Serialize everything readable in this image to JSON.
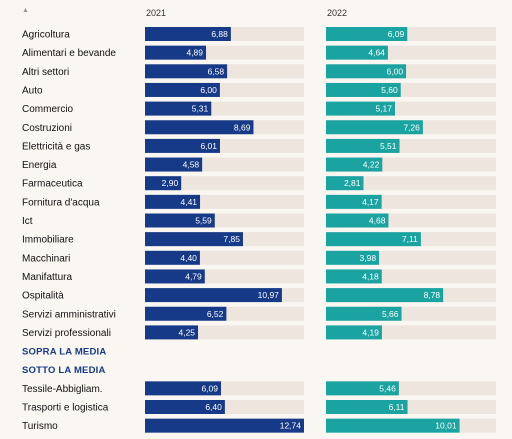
{
  "header": {
    "sort_icon": "▲",
    "col_2021": "2021",
    "col_2022": "2022"
  },
  "colors": {
    "bar_2021": "#163a87",
    "bar_2022": "#1aa3a0",
    "track": "#ede5de",
    "section": "#163a87"
  },
  "chart_data": {
    "type": "bar",
    "orientation": "horizontal",
    "series_names": [
      "2021",
      "2022"
    ],
    "xlim": [
      0,
      12.74
    ],
    "rows": [
      {
        "label": "Agricoltura",
        "v2021": "6,88",
        "v2022": "6,09"
      },
      {
        "label": "Alimentari e bevande",
        "v2021": "4,89",
        "v2022": "4,64"
      },
      {
        "label": "Altri settori",
        "v2021": "6,58",
        "v2022": "6,00"
      },
      {
        "label": "Auto",
        "v2021": "6,00",
        "v2022": "5,60"
      },
      {
        "label": "Commercio",
        "v2021": "5,31",
        "v2022": "5,17"
      },
      {
        "label": "Costruzioni",
        "v2021": "8,69",
        "v2022": "7,26"
      },
      {
        "label": "Elettricità e gas",
        "v2021": "6,01",
        "v2022": "5,51"
      },
      {
        "label": "Energia",
        "v2021": "4,58",
        "v2022": "4,22"
      },
      {
        "label": "Farmaceutica",
        "v2021": "2,90",
        "v2022": "2,81"
      },
      {
        "label": "Fornitura d'acqua",
        "v2021": "4,41",
        "v2022": "4,17"
      },
      {
        "label": "Ict",
        "v2021": "5,59",
        "v2022": "4,68"
      },
      {
        "label": "Immobiliare",
        "v2021": "7,85",
        "v2022": "7,11"
      },
      {
        "label": "Macchinari",
        "v2021": "4,40",
        "v2022": "3,98"
      },
      {
        "label": "Manifattura",
        "v2021": "4,79",
        "v2022": "4,18"
      },
      {
        "label": "Ospitalità",
        "v2021": "10,97",
        "v2022": "8,78"
      },
      {
        "label": "Servizi amministrativi",
        "v2021": "6,52",
        "v2022": "5,66"
      },
      {
        "label": "Servizi professionali",
        "v2021": "4,25",
        "v2022": "4,19"
      },
      {
        "section": "SOPRA LA MEDIA"
      },
      {
        "section": "SOTTO LA MEDIA"
      },
      {
        "label": "Tessile-Abbigliam.",
        "v2021": "6,09",
        "v2022": "5,46"
      },
      {
        "label": "Trasporti e logistica",
        "v2021": "6,40",
        "v2022": "6,11"
      },
      {
        "label": "Turismo",
        "v2021": "12,74",
        "v2022": "10,01"
      }
    ]
  }
}
